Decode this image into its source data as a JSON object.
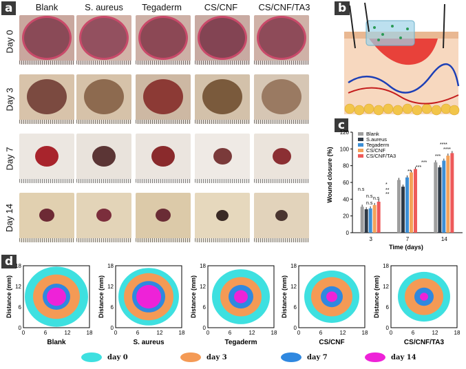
{
  "panels": {
    "a": "a",
    "b": "b",
    "c": "c",
    "d": "d"
  },
  "panel_a": {
    "columns": [
      "Blank",
      "S. aureus",
      "Tegaderm",
      "CS/CNF",
      "CS/CNF/TA3"
    ],
    "rows": [
      "Day 0",
      "Day 3",
      "Day 7",
      "Day 14"
    ]
  },
  "colors": {
    "blank": "#9e9e9e",
    "saureus": "#2f3a46",
    "tegaderm": "#3d8fd6",
    "cscnf": "#f4a259",
    "cscnfta3": "#ee5a5a",
    "day0": "#3ee0e0",
    "day3": "#f49a55",
    "day7": "#2f88e0",
    "day14": "#ee22d8"
  },
  "chart_data": {
    "type": "bar",
    "ylabel": "Wound closure (%)",
    "xlabel": "Time (days)",
    "categories": [
      "3",
      "7",
      "14"
    ],
    "ylim": [
      0,
      120
    ],
    "yticks": [
      "0",
      "20",
      "40",
      "60",
      "80",
      "100",
      "120"
    ],
    "series": [
      {
        "name": "Blank",
        "values": [
          31,
          63,
          84
        ]
      },
      {
        "name": "S.aureus",
        "values": [
          28,
          55,
          78
        ]
      },
      {
        "name": "Tegaderm",
        "values": [
          29,
          66,
          86
        ]
      },
      {
        "name": "CS/CNF",
        "values": [
          33,
          72,
          92
        ]
      },
      {
        "name": "CS/CNF/TA3",
        "values": [
          37,
          76,
          95
        ]
      }
    ],
    "annotations": [
      "n.s",
      "n.s",
      "n.s",
      "n.s",
      "*",
      "**",
      "**",
      "**",
      "***",
      "***",
      "****",
      "****",
      "***"
    ]
  },
  "panel_d": {
    "ylabel": "Distance  (mm)",
    "xticks": [
      "0",
      "6",
      "12",
      "18"
    ],
    "yticks": [
      "0",
      "6",
      "12",
      "18"
    ],
    "titles": [
      "Blank",
      "S. aureus",
      "Tegaderm",
      "CS/CNF",
      "CS/CNF/TA3"
    ]
  },
  "legend": [
    "day 0",
    "day 3",
    "day 7",
    "day 14"
  ]
}
